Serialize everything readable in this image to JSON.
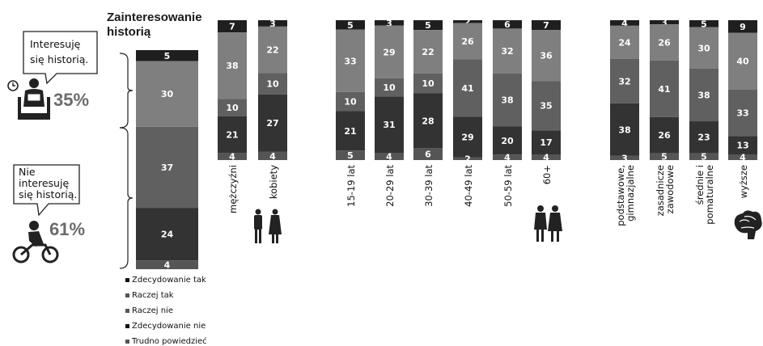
{
  "chart_data": {
    "type": "bar",
    "title": "Zainteresowanie historią",
    "series_names": [
      "Zdecydowanie tak",
      "Raczej tak",
      "Raczej nie",
      "Zdecydowanie nie",
      "Trudno powiedzieć"
    ],
    "colors": [
      "#1f1f1f",
      "#7f7f7f",
      "#606060",
      "#333333",
      "#555555"
    ],
    "overall": {
      "values": [
        5,
        30,
        37,
        24,
        4
      ]
    },
    "groups": [
      {
        "categories": [
          "mężczyźni",
          "kobiety"
        ],
        "values": [
          [
            7,
            38,
            10,
            21,
            4
          ],
          [
            3,
            22,
            10,
            27,
            4
          ]
        ]
      },
      {
        "categories": [
          "15-19 lat",
          "20-29 lat",
          "30-39 lat",
          "40-49 lat",
          "50-59 lat",
          "60+"
        ],
        "values": [
          [
            5,
            33,
            10,
            21,
            5
          ],
          [
            3,
            29,
            10,
            31,
            4
          ],
          [
            5,
            22,
            10,
            28,
            6
          ],
          [
            2,
            26,
            41,
            29,
            2
          ],
          [
            6,
            32,
            38,
            20,
            4
          ],
          [
            7,
            36,
            35,
            17,
            4
          ]
        ]
      },
      {
        "categories": [
          "podstawowe, gimnazjalne",
          "zasadnicze zawodowe",
          "średnie i pomaturalne",
          "wyższe"
        ],
        "values": [
          [
            4,
            24,
            32,
            38,
            3
          ],
          [
            3,
            26,
            41,
            26,
            5
          ],
          [
            5,
            30,
            38,
            23,
            5
          ],
          [
            9,
            40,
            33,
            13,
            4
          ]
        ]
      }
    ]
  },
  "annotations": {
    "interested_bubble": "Interesuję się historią.",
    "interested_pct": "35%",
    "not_interested_bubble": "Nie interesuję się historią.",
    "not_interested_pct": "61%"
  },
  "icons": [
    "person-reading-icon",
    "clock-icon",
    "motorcyclist-icon",
    "man-woman-icon",
    "two-women-icon",
    "brain-icon"
  ]
}
